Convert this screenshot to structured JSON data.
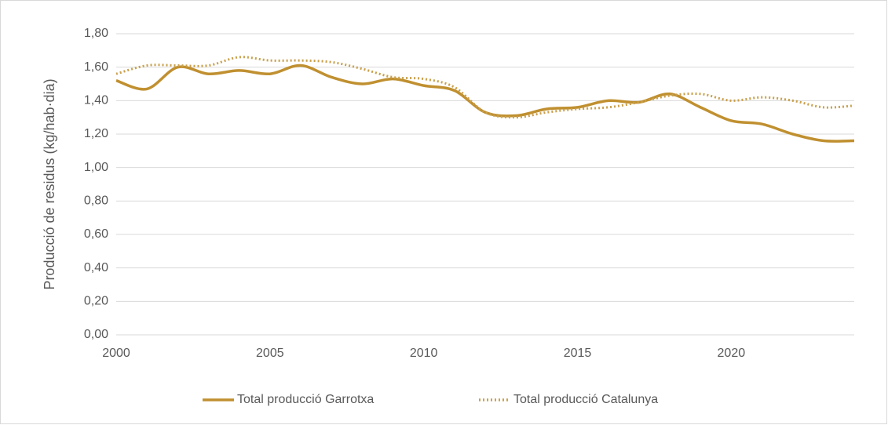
{
  "chart_data": {
    "type": "line",
    "ylabel": "Producció de residus (kg/hab·dia)",
    "x": [
      2000,
      2001,
      2002,
      2003,
      2004,
      2005,
      2006,
      2007,
      2008,
      2009,
      2010,
      2011,
      2012,
      2013,
      2014,
      2015,
      2016,
      2017,
      2018,
      2019,
      2020,
      2021,
      2022,
      2023,
      2024
    ],
    "xlim": [
      2000,
      2024
    ],
    "xticks": [
      2000,
      2005,
      2010,
      2015,
      2020
    ],
    "ylim": [
      0,
      1.8
    ],
    "yticks": [
      {
        "value": 0,
        "label": "0,00"
      },
      {
        "value": 0.2,
        "label": "0,20"
      },
      {
        "value": 0.4,
        "label": "0,40"
      },
      {
        "value": 0.6,
        "label": "0,60"
      },
      {
        "value": 0.8,
        "label": "0,80"
      },
      {
        "value": 1.0,
        "label": "1,00"
      },
      {
        "value": 1.2,
        "label": "1,20"
      },
      {
        "value": 1.4,
        "label": "1,40"
      },
      {
        "value": 1.6,
        "label": "1,60"
      },
      {
        "value": 1.8,
        "label": "1,80"
      }
    ],
    "grid": true,
    "legend": "bottom",
    "series": [
      {
        "name": "Total producció Garrotxa",
        "color": "#c09030",
        "style": "solid",
        "values": [
          1.52,
          1.47,
          1.6,
          1.56,
          1.58,
          1.56,
          1.61,
          1.54,
          1.5,
          1.53,
          1.49,
          1.46,
          1.33,
          1.31,
          1.35,
          1.36,
          1.4,
          1.39,
          1.44,
          1.36,
          1.28,
          1.26,
          1.2,
          1.16,
          1.16
        ]
      },
      {
        "name": "Total producció Catalunya",
        "color": "#c9a04c",
        "style": "dotted",
        "values": [
          1.56,
          1.61,
          1.61,
          1.61,
          1.66,
          1.64,
          1.64,
          1.63,
          1.59,
          1.54,
          1.53,
          1.48,
          1.33,
          1.3,
          1.33,
          1.35,
          1.36,
          1.39,
          1.43,
          1.44,
          1.4,
          1.42,
          1.4,
          1.36,
          1.37
        ]
      }
    ]
  }
}
